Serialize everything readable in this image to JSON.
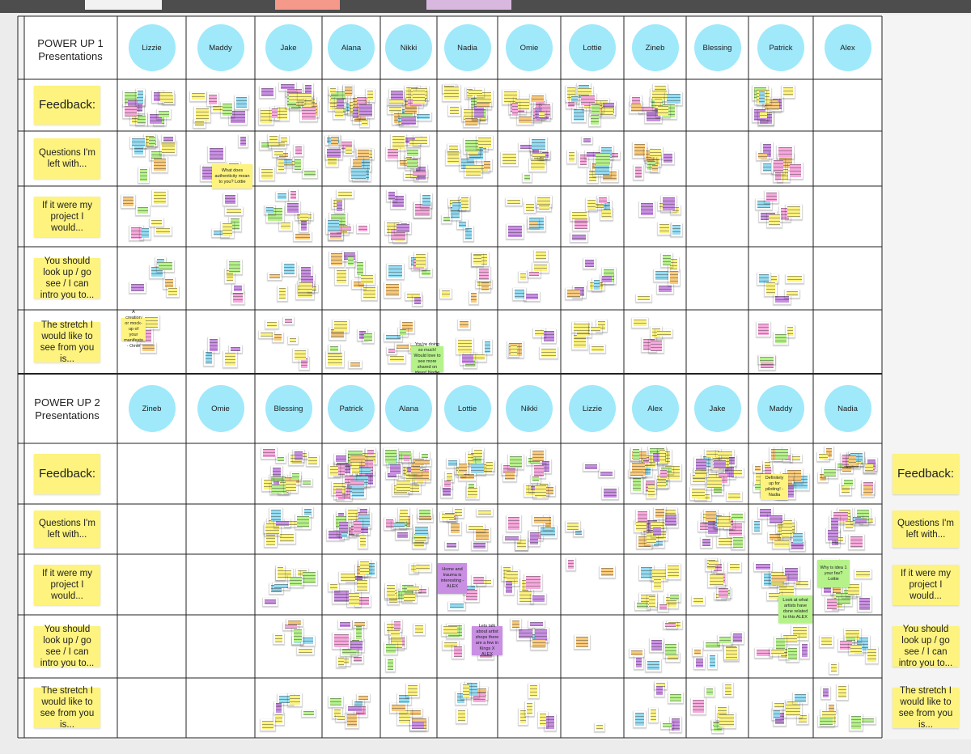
{
  "sections": [
    {
      "title_lines": [
        "POWER UP 1",
        "Presentations"
      ],
      "names": [
        "Lizzie",
        "Maddy",
        "Jake",
        "Alana",
        "Nikki",
        "Nadia",
        "Omie",
        "Lottie",
        "Zineb",
        "Blessing",
        "Patrick",
        "Alex"
      ]
    },
    {
      "title_lines": [
        "POWER UP 2",
        "Presentations"
      ],
      "names": [
        "Zineb",
        "Omie",
        "Blessing",
        "Patrick",
        "Alana",
        "Lottie",
        "Nikki",
        "Lizzie",
        "Alex",
        "Jake",
        "Maddy",
        "Nadia"
      ]
    }
  ],
  "row_labels": [
    "Feedback:",
    "Questions I'm left with...",
    "If it were my project I would...",
    "You should look up / go see / I can intro you to...",
    "The stretch I would like to see from you is..."
  ],
  "notes": [
    "What does authenticity mean to you? Lottie",
    "A creation or mock-up of your manifesto - Omie",
    "You're doing so much! Would love to see more shared on ideas! Nadia",
    "Definitely up for piloting! - Nadia",
    "Home and trauma is interesting - ALEX",
    "Lets talk about artist shops there are a few in Kings X ALEX",
    "Why is idea 1 your fav? Lottie",
    "Look at what artists have done related to this ALEX"
  ]
}
